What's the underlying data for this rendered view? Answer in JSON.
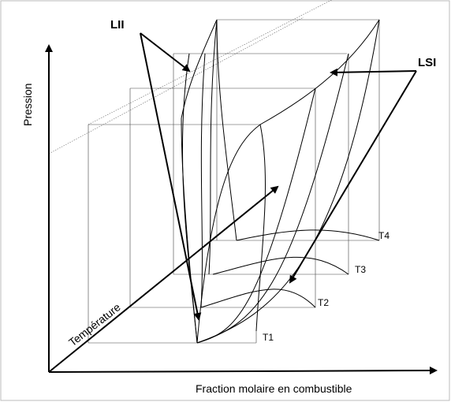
{
  "labels": {
    "lii": "LII",
    "lsi": "LSI",
    "y_axis": "Pression",
    "depth_axis": "Température",
    "x_axis": "Fraction molaire en combustible"
  },
  "isotherms": [
    "T1",
    "T2",
    "T3",
    "T4"
  ]
}
